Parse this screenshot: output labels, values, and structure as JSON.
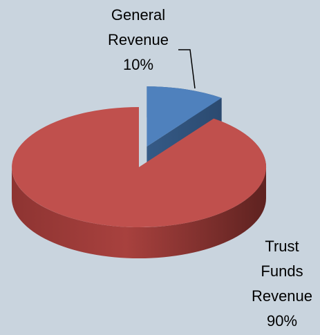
{
  "chart_data": {
    "type": "pie",
    "categories": [
      "General Revenue",
      "Trust Funds Revenue"
    ],
    "values": [
      10,
      90
    ],
    "value_labels": [
      "10%",
      "90%"
    ],
    "colors": [
      "#4f81bd",
      "#c0504d"
    ],
    "exploded": [
      0
    ]
  }
}
